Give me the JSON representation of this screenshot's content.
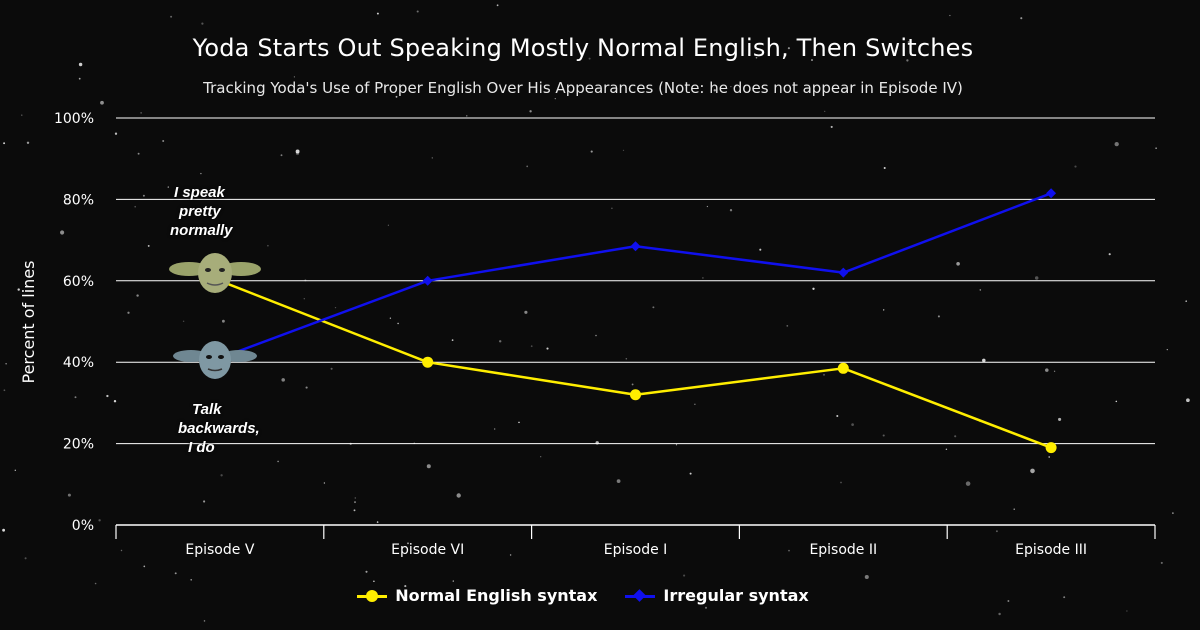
{
  "title": "Yoda Starts Out Speaking Mostly Normal English, Then Switches",
  "subtitle": "Tracking Yoda's Use of Proper English Over His Appearances (Note: he does not appear in Episode IV)",
  "annotations": {
    "top": [
      "I speak",
      "pretty",
      "normally"
    ],
    "bottom": [
      "Talk",
      "backwards,",
      "I do"
    ]
  },
  "icons": {
    "normal_yoda": "yoda-head-icon",
    "backwards_yoda": "yoda-head-icon"
  },
  "colors": {
    "normal": "#ffee00",
    "irregular": "#1010ee",
    "background": "#0b0b0b",
    "grid": "#ffffff"
  },
  "chart_data": {
    "type": "line",
    "title": "Yoda Starts Out Speaking Mostly Normal English, Then Switches",
    "subtitle": "Tracking Yoda's Use of Proper English Over His Appearances (Note: he does not appear in Episode IV)",
    "xlabel": "",
    "ylabel": "Percent of lines",
    "categories": [
      "Episode V",
      "Episode VI",
      "Episode I",
      "Episode II",
      "Episode III"
    ],
    "ylim": [
      0,
      100
    ],
    "yticks": [
      0,
      20,
      40,
      60,
      80,
      100
    ],
    "ytick_labels": [
      "0%",
      "20%",
      "40%",
      "60%",
      "80%",
      "100%"
    ],
    "grid": true,
    "legend_position": "bottom",
    "series": [
      {
        "name": "Normal English syntax",
        "values": [
          60,
          40,
          32,
          38.5,
          19
        ],
        "marker": "circle",
        "color": "#ffee00"
      },
      {
        "name": "Irregular syntax",
        "values": [
          41,
          60,
          68.5,
          62,
          81.5
        ],
        "marker": "diamond",
        "color": "#1010ee"
      }
    ]
  }
}
